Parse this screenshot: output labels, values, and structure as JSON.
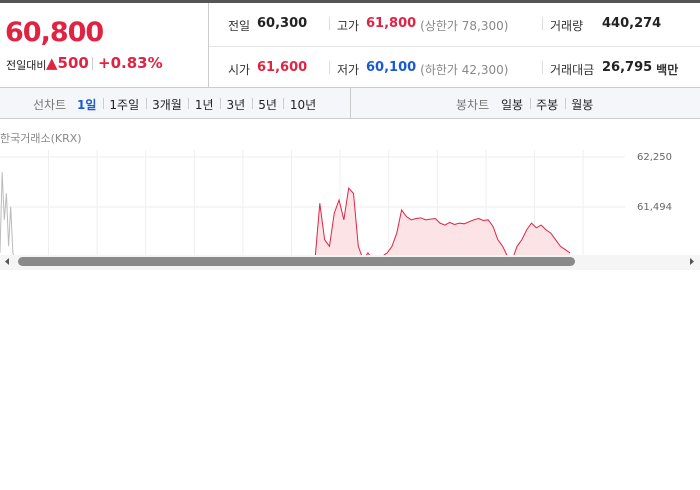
{
  "quote": {
    "price": "60,800",
    "change_label": "전일대비",
    "change": "▲500",
    "change_rate": "+0.83%",
    "fields": [
      [
        {
          "label": "전일",
          "value": "60,300",
          "color": "#222"
        },
        {
          "label": "고가",
          "value": "61,800",
          "note": "(상한가 78,300)",
          "color": "#e12343"
        },
        {
          "label": "거래량",
          "value": "440,274",
          "color": "#222"
        }
      ],
      [
        {
          "label": "시가",
          "value": "61,600",
          "color": "#e12343"
        },
        {
          "label": "저가",
          "value": "60,100",
          "note": "(하한가 42,300)",
          "color": "#1a5bd3"
        },
        {
          "label": "거래대금",
          "value": "26,795",
          "unit": "백만",
          "color": "#222"
        }
      ]
    ]
  },
  "tabs": {
    "line": {
      "label": "선차트",
      "items": [
        "1일",
        "1주일",
        "3개월",
        "1년",
        "3년",
        "5년",
        "10년"
      ],
      "selected": 0
    },
    "candle": {
      "label": "봉차트",
      "items": [
        "일봉",
        "주봉",
        "월봉"
      ]
    }
  },
  "chart_data": {
    "type": "line",
    "source": "한국거래소(KRX)",
    "ylim": [
      60768,
      62250
    ],
    "yticks": [
      {
        "value": 62250,
        "label": "62,250"
      },
      {
        "value": 61494,
        "label": "61,494"
      }
    ],
    "grid": true,
    "series": [
      {
        "color": "#bbbbbb",
        "values": [
          60800,
          62020,
          61300,
          61700,
          60900,
          61500,
          60800,
          60700
        ]
      },
      {
        "color": "#e12343",
        "values": [
          60700,
          61550,
          61000,
          60900,
          61400,
          61600,
          61300,
          61780,
          61700,
          60900,
          60700,
          60800,
          60700,
          60700,
          60750,
          60800,
          60900,
          61100,
          61450,
          61350,
          61300,
          61320,
          61330,
          61300,
          61310,
          61320,
          61250,
          61220,
          61260,
          61230,
          61250,
          61240,
          61270,
          61300,
          61320,
          61290,
          61300,
          61200,
          61000,
          60900,
          60750,
          60700,
          60900,
          61000,
          61150,
          61250,
          61180,
          61220,
          61150,
          61100,
          61000,
          60900,
          60850,
          60800
        ]
      }
    ]
  }
}
